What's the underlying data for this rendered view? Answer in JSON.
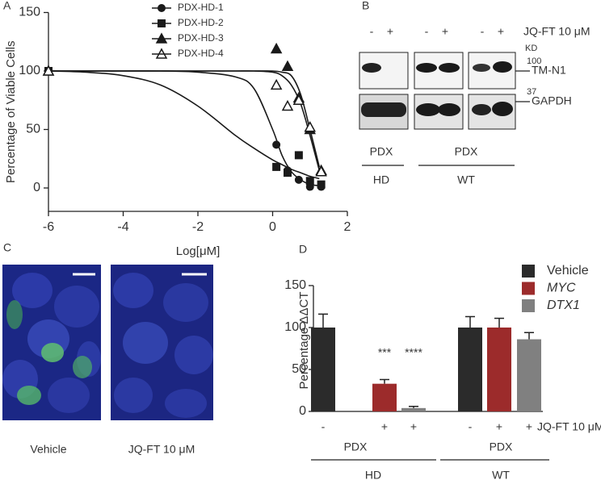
{
  "chart_data": [
    {
      "type": "scatter",
      "panel": "A",
      "xlabel": "Log[μM]",
      "ylabel": "Percentage of Viable Cells",
      "xlim": [
        -6,
        2
      ],
      "xticks": [
        -6,
        -4,
        -2,
        0,
        2
      ],
      "ylim": [
        -20,
        150
      ],
      "yticks": [
        0,
        50,
        100,
        150
      ],
      "x": [
        -6,
        0.1,
        0.4,
        0.7,
        1.0,
        1.3
      ],
      "fit_x": [
        -6,
        -5,
        -4,
        -3,
        -2,
        -1,
        -0.5,
        0,
        0.25,
        0.5,
        0.75,
        1,
        1.25
      ],
      "series": [
        {
          "name": "PDX-HD-1",
          "color": "#1a1a1a",
          "marker": "circle",
          "values": [
            100,
            37,
            15,
            7,
            1,
            1
          ],
          "fit_values": [
            100,
            100,
            100,
            100,
            99,
            95,
            85,
            50,
            28,
            14,
            7,
            3,
            2
          ]
        },
        {
          "name": "PDX-HD-2",
          "color": "#1a1a1a",
          "marker": "square",
          "values": [
            100,
            18,
            13,
            28,
            6,
            3
          ],
          "fit_values": [
            100,
            99,
            96,
            88,
            70,
            45,
            34,
            24,
            20,
            16,
            13,
            10,
            8
          ]
        },
        {
          "name": "PDX-HD-3",
          "color": "#1a1a1a",
          "marker": "triangle",
          "values": [
            100,
            119,
            104,
            77,
            50,
            15
          ],
          "fit_values": [
            100,
            100,
            100,
            100,
            100,
            100,
            100,
            100,
            99,
            96,
            80,
            50,
            18
          ]
        },
        {
          "name": "PDX-HD-4",
          "color": "#1a1a1a",
          "marker": "triangle-open",
          "values": [
            100,
            88,
            70,
            75,
            52,
            14
          ],
          "fit_values": [
            100,
            100,
            100,
            100,
            100,
            100,
            100,
            99,
            96,
            88,
            72,
            45,
            15
          ]
        }
      ]
    },
    {
      "type": "bar",
      "panel": "D",
      "ylabel": "Percentage  ΔΔCT",
      "ylim": [
        0,
        150
      ],
      "yticks": [
        0,
        50,
        100,
        150
      ],
      "treatment_label": "JQ-FT 10 μM",
      "treatments": [
        "-",
        "+",
        "+",
        "-",
        "+",
        "+"
      ],
      "groups": [
        {
          "source": "PDX",
          "name": "HD"
        },
        {
          "source": "PDX",
          "name": "WT"
        }
      ],
      "series": [
        {
          "name": "Vehicle",
          "color": "#2b2b2b",
          "italic": false,
          "values": [
            100,
            100
          ],
          "errors": [
            16,
            13
          ],
          "significance": [
            null,
            null
          ]
        },
        {
          "name": "MYC",
          "color": "#9c2b2b",
          "italic": true,
          "values": [
            33,
            100
          ],
          "errors": [
            5,
            11
          ],
          "significance": [
            "***",
            null
          ]
        },
        {
          "name": "DTX1",
          "color": "#808080",
          "italic": true,
          "values": [
            4,
            86
          ],
          "errors": [
            2,
            8
          ],
          "significance": [
            "****",
            null
          ]
        }
      ]
    }
  ],
  "panel_b": {
    "label": "B",
    "treatment_label": "JQ-FT 10 μM",
    "treatments": [
      "-",
      "+",
      "-",
      "+",
      "-",
      "+"
    ],
    "kd_label": "KD",
    "bands": [
      {
        "kd": "100",
        "name": "TM-N1"
      },
      {
        "kd": "37",
        "name": "GAPDH"
      }
    ],
    "groups": [
      {
        "source": "PDX",
        "name": "HD"
      },
      {
        "source": "PDX",
        "name": "WT"
      }
    ]
  },
  "panel_c": {
    "label": "C",
    "images": [
      "Vehicle",
      "JQ-FT 10 μM"
    ]
  }
}
